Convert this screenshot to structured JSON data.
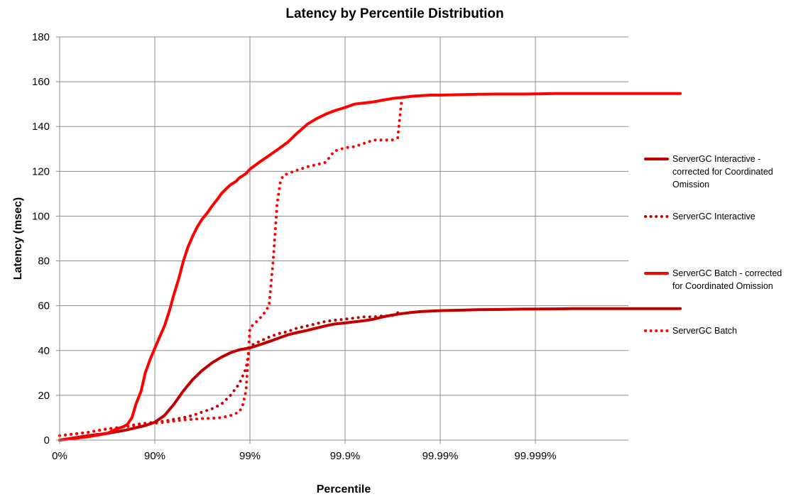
{
  "chart_data": {
    "type": "line",
    "title": "Latency by Percentile Distribution",
    "xlabel": "Percentile",
    "ylabel": "Latency  (msec)",
    "x_scale": "log-percentile",
    "x_tick_labels": [
      "0%",
      "90%",
      "99%",
      "99.9%",
      "99.99%",
      "99.999%"
    ],
    "x_ticks": [
      0,
      90,
      99,
      99.9,
      99.99,
      99.999
    ],
    "xlim": [
      0,
      99.99997
    ],
    "ylim": [
      0,
      180
    ],
    "y_ticks": [
      0,
      20,
      40,
      60,
      80,
      100,
      120,
      140,
      160,
      180
    ],
    "grid": true,
    "legend_position": "right",
    "series": [
      {
        "name": "ServerGC Interactive - corrected for Coordinated Omission",
        "color": "#c00000",
        "style": "solid",
        "x": [
          0,
          50,
          68.4,
          80,
          84.2,
          87.4,
          90,
          92.1,
          93.7,
          95,
          96,
          96.8,
          97.5,
          98,
          98.4,
          98.7,
          99,
          99.2,
          99.37,
          99.5,
          99.6,
          99.68,
          99.75,
          99.8,
          99.84,
          99.87,
          99.9,
          99.92,
          99.937,
          99.95,
          99.96,
          99.968,
          99.975,
          99.98,
          99.984,
          99.9875,
          99.99,
          99.9937,
          99.996,
          99.9975,
          99.998,
          99.9987,
          99.999,
          99.99937,
          99.9996,
          99.99975,
          99.99997
        ],
        "y": [
          0,
          2,
          3,
          4.5,
          5.5,
          6.5,
          8,
          11,
          16,
          22,
          27,
          31,
          34.5,
          37,
          39,
          40.3,
          41.2,
          42.5,
          44,
          45.5,
          47,
          48,
          49,
          50,
          51,
          51.8,
          52.3,
          52.8,
          53.3,
          54,
          55,
          55.8,
          56.5,
          57,
          57.4,
          57.6,
          57.8,
          58,
          58.2,
          58.3,
          58.4,
          58.5,
          58.5,
          58.6,
          58.7,
          58.7,
          58.7
        ]
      },
      {
        "name": "ServerGC Interactive",
        "color": "#c00000",
        "style": "dotted",
        "x": [
          0,
          50,
          68.4,
          80,
          84.2,
          87.4,
          90,
          92.1,
          93.7,
          95,
          96,
          96.8,
          97.5,
          98,
          98.4,
          98.7,
          98.9,
          99,
          99.2,
          99.37,
          99.5,
          99.6,
          99.68,
          99.75,
          99.8,
          99.84,
          99.87,
          99.9,
          99.92,
          99.937,
          99.95,
          99.96,
          99.968,
          99.975
        ],
        "y": [
          2,
          3.5,
          5,
          6,
          7,
          7.5,
          8,
          8.5,
          9.3,
          10,
          11,
          12.5,
          14,
          16,
          20,
          25,
          32,
          42,
          44,
          46,
          47.5,
          48.5,
          50,
          51,
          52,
          53,
          53.5,
          54,
          54.5,
          55,
          55,
          55.5,
          55.5,
          58
        ]
      },
      {
        "name": "ServerGC Batch - corrected for Coordinated Omission",
        "color": "#ff0000",
        "style": "solid",
        "x": [
          0,
          50,
          68.4,
          74.9,
          78.6,
          80.6,
          82.6,
          84.2,
          86.1,
          87.4,
          88.8,
          90,
          91.1,
          92.1,
          93,
          93.7,
          94.4,
          95,
          95.5,
          96,
          96.4,
          96.8,
          97.2,
          97.5,
          97.8,
          98,
          98.2,
          98.4,
          98.6,
          98.7,
          98.9,
          99,
          99.2,
          99.37,
          99.5,
          99.6,
          99.68,
          99.75,
          99.8,
          99.84,
          99.87,
          99.9,
          99.92,
          99.937,
          99.95,
          99.96,
          99.968,
          99.975,
          99.98,
          99.984,
          99.9875,
          99.99,
          99.9937,
          99.996,
          99.9975,
          99.998,
          99.9987,
          99.999,
          99.99937,
          99.9996,
          99.99997
        ],
        "y": [
          0,
          1.5,
          3,
          5,
          6,
          7,
          10,
          16,
          22,
          30,
          36,
          41,
          46,
          51,
          58,
          65,
          72,
          80,
          86,
          91,
          95,
          98.5,
          101.5,
          104.5,
          107.5,
          110,
          112,
          114,
          115.5,
          117,
          119,
          121,
          124,
          127,
          130,
          133,
          137,
          141,
          143.5,
          145.5,
          147,
          148.5,
          150,
          150.5,
          151,
          151.8,
          152.5,
          153,
          153.5,
          153.8,
          154,
          154,
          154.2,
          154.4,
          154.5,
          154.5,
          154.5,
          154.6,
          154.7,
          154.7,
          154.7
        ]
      },
      {
        "name": "ServerGC Batch",
        "color": "#ff0000",
        "style": "dotted",
        "x": [
          0,
          50,
          68.4,
          80,
          84.2,
          87.4,
          90,
          92.1,
          93.7,
          95,
          96,
          96.8,
          97.5,
          98,
          98.4,
          98.7,
          98.8,
          98.9,
          99,
          99.1,
          99.2,
          99.3,
          99.37,
          99.43,
          99.48,
          99.52,
          99.55,
          99.6,
          99.68,
          99.75,
          99.8,
          99.84,
          99.87,
          99.9,
          99.92,
          99.937,
          99.95,
          99.96,
          99.968,
          99.972,
          99.975
        ],
        "y": [
          2,
          3.5,
          5,
          6,
          6.5,
          7,
          7.5,
          8,
          8.5,
          9,
          9.3,
          9.6,
          9.8,
          10,
          11,
          12.5,
          15,
          22,
          50,
          52,
          54,
          57,
          60,
          80,
          105,
          115,
          118,
          119,
          120.5,
          122,
          123,
          124,
          129,
          130.5,
          131,
          132.5,
          134,
          134,
          134,
          135,
          155
        ]
      }
    ]
  }
}
